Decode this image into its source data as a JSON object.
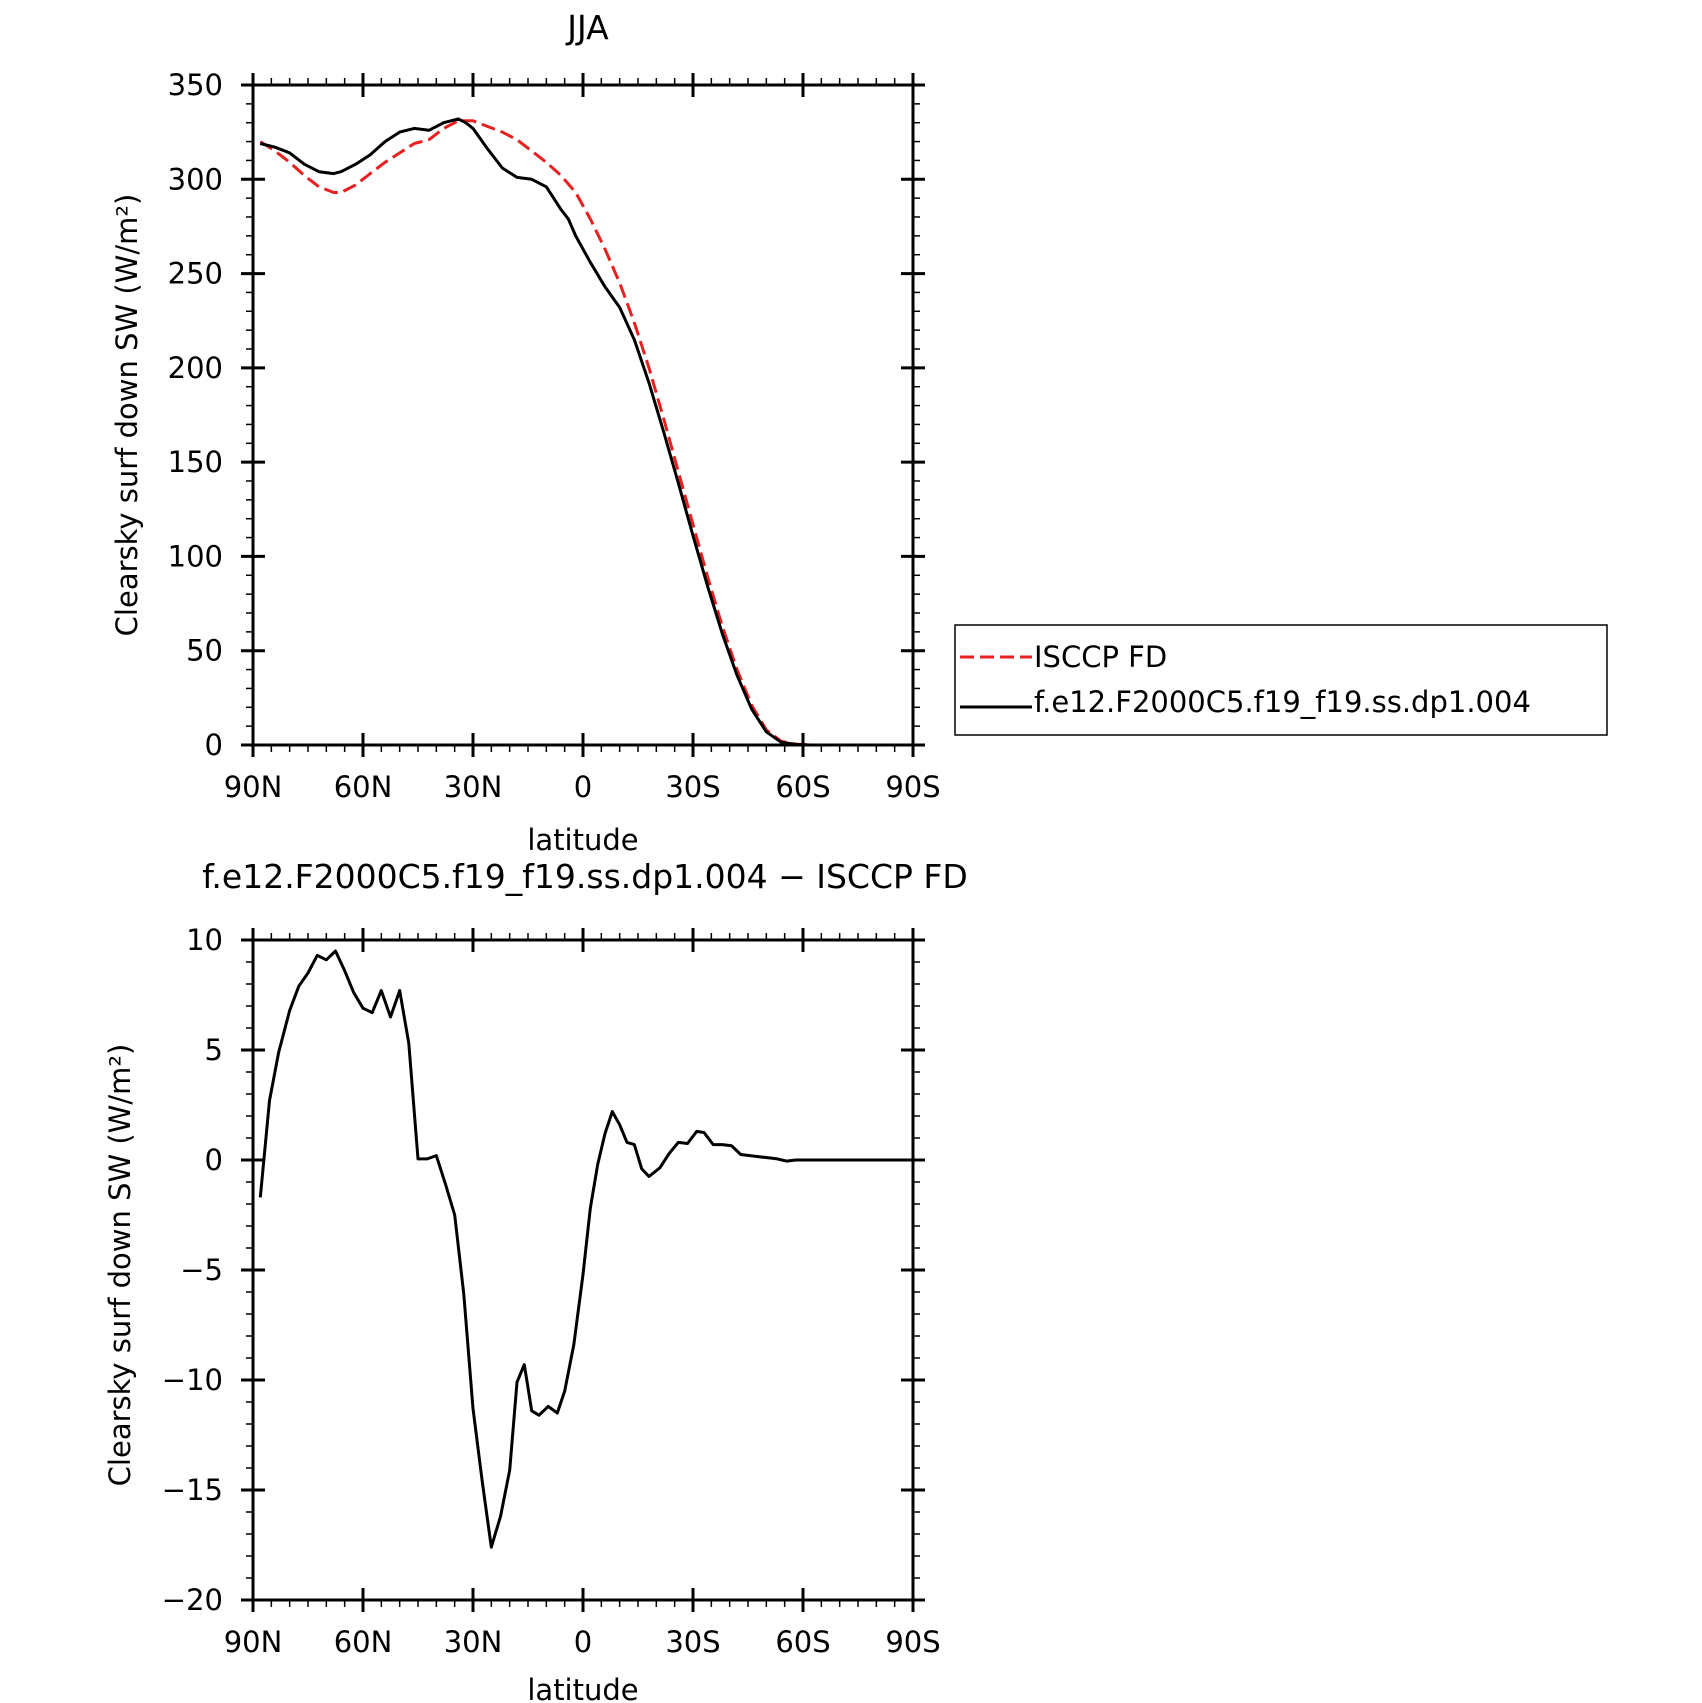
{
  "chart_data": [
    {
      "type": "line",
      "title": "JJA",
      "xlabel": "latitude",
      "ylabel": "Clearsky surf down SW (W/m²)",
      "xlim": [
        90,
        -90
      ],
      "ylim": [
        0,
        350
      ],
      "xticks": [
        90,
        60,
        30,
        0,
        -30,
        -60,
        -90
      ],
      "xtick_labels": [
        "90N",
        "60N",
        "30N",
        "0",
        "30S",
        "60S",
        "90S"
      ],
      "yticks": [
        0,
        50,
        100,
        150,
        200,
        250,
        300,
        350
      ],
      "ytick_labels": [
        "0",
        "50",
        "100",
        "150",
        "200",
        "250",
        "300",
        "350"
      ],
      "grid": false,
      "legend_position": "right",
      "series": [
        {
          "name": "ISCCP FD",
          "color": "#e8201f",
          "dash": "dashed",
          "x": [
            88,
            84,
            80,
            76,
            72,
            68,
            66,
            62,
            58,
            54,
            50,
            46,
            42,
            38,
            34,
            30,
            26,
            22,
            18,
            14,
            10,
            6,
            2,
            -2,
            -6,
            -10,
            -14,
            -18,
            -22,
            -26,
            -30,
            -34,
            -38,
            -42,
            -46,
            -50,
            -54,
            -58,
            -62,
            -66,
            -70,
            -74,
            -78,
            -82,
            -86,
            -89
          ],
          "y": [
            320,
            315,
            309,
            302,
            296,
            293,
            293,
            297,
            303,
            309,
            314,
            319,
            321,
            327,
            331,
            331,
            328,
            325,
            321,
            315,
            309,
            302,
            293,
            279,
            263,
            245,
            224,
            200,
            173,
            145,
            117,
            89,
            63,
            40,
            21,
            8,
            2,
            0.5,
            0,
            0,
            0,
            0,
            0,
            0,
            0,
            0
          ],
          "x_note": "n/a"
        },
        {
          "name": "f.e12.F2000C5.f19_f19.ss.dp1.004",
          "color": "#000000",
          "dash": "solid",
          "x": [
            88,
            84,
            80,
            76,
            72,
            68,
            66,
            62,
            58,
            54,
            50,
            46,
            42,
            38,
            34,
            32,
            30,
            26,
            22,
            18,
            14,
            10,
            6,
            4,
            2,
            -2,
            -6,
            -10,
            -14,
            -18,
            -22,
            -26,
            -30,
            -34,
            -38,
            -42,
            -46,
            -50,
            -54,
            -58,
            -62,
            -66,
            -70,
            -74,
            -78,
            -82,
            -86,
            -89
          ],
          "y": [
            319,
            317,
            314,
            308,
            304,
            303,
            304,
            308,
            313,
            320,
            325,
            327,
            326,
            330,
            332,
            330,
            327,
            316,
            306,
            301,
            300,
            296,
            284,
            279,
            270,
            256,
            243,
            232,
            215,
            192,
            166,
            139,
            111,
            84,
            59,
            37,
            19,
            7,
            1.5,
            0.3,
            0,
            0,
            0,
            0,
            0,
            0,
            0,
            0
          ]
        }
      ]
    },
    {
      "type": "line",
      "title": "f.e12.F2000C5.f19_f19.ss.dp1.004 − ISCCP FD",
      "xlabel": "latitude",
      "ylabel": "Clearsky surf down SW (W/m²)",
      "xlim": [
        90,
        -90
      ],
      "ylim": [
        -20,
        10
      ],
      "xticks": [
        90,
        60,
        30,
        0,
        -30,
        -60,
        -90
      ],
      "xtick_labels": [
        "90N",
        "60N",
        "30N",
        "0",
        "30S",
        "60S",
        "90S"
      ],
      "yticks": [
        -20,
        -15,
        -10,
        -5,
        0,
        5,
        10
      ],
      "ytick_labels": [
        "−20",
        "−15",
        "−10",
        "−5",
        "0",
        "5",
        "10"
      ],
      "grid": false,
      "series": [
        {
          "color": "#000000",
          "dash": "solid",
          "x": [
            88,
            85.5,
            83,
            80,
            77.5,
            75,
            72.5,
            70,
            67.5,
            65,
            62.5,
            60,
            57.5,
            55,
            52.5,
            50,
            47.5,
            45,
            42.5,
            40,
            37.5,
            35,
            32.5,
            30,
            27.5,
            25,
            22.5,
            20,
            18,
            16,
            14,
            12,
            9.5,
            7,
            5,
            2.5,
            0,
            -2,
            -4,
            -6,
            -8,
            -10,
            -12,
            -14,
            -16,
            -18,
            -21,
            -23.5,
            -26,
            -28.5,
            -31,
            -33,
            -35.5,
            -38,
            -40.5,
            -43,
            -45.5,
            -48,
            -50.5,
            -53,
            -55.5,
            -58,
            -60.5,
            -63,
            -65.5,
            -68,
            -70.5,
            -73,
            -75.5,
            -78,
            -80.5,
            -83,
            -85.5,
            -88.5
          ],
          "y": [
            -1.7,
            2.7,
            4.9,
            6.8,
            7.9,
            8.5,
            9.3,
            9.1,
            9.5,
            8.6,
            7.6,
            6.9,
            6.7,
            7.7,
            6.5,
            7.7,
            5.3,
            0.05,
            0.05,
            0.2,
            -1.1,
            -2.5,
            -6.1,
            -11.3,
            -14.6,
            -17.6,
            -16.2,
            -14.1,
            -10.1,
            -9.3,
            -11.4,
            -11.6,
            -11.2,
            -11.5,
            -10.5,
            -8.4,
            -5.2,
            -2.2,
            -0.2,
            1.2,
            2.2,
            1.6,
            0.8,
            0.7,
            -0.4,
            -0.75,
            -0.35,
            0.3,
            0.8,
            0.75,
            1.3,
            1.25,
            0.7,
            0.7,
            0.65,
            0.25,
            0.2,
            0.15,
            0.1,
            0.05,
            -0.05,
            0.0,
            0.0,
            0.0,
            0.0,
            0.0,
            0.0,
            0.0,
            0.0,
            0.0,
            0.0,
            0.0,
            0.0,
            0.0
          ]
        }
      ]
    }
  ]
}
